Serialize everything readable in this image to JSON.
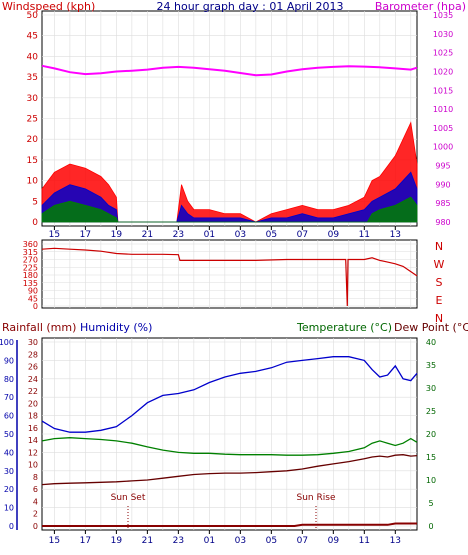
{
  "colors": {
    "windspeed": "#ff0000",
    "avg_wind": "#0000cc",
    "gust_low": "#008000",
    "barometer": "#ff00ff",
    "direction": "#cc0000",
    "humidity": "#0000cc",
    "temperature": "#008000",
    "dewpoint": "#660000",
    "rainfall": "#880000",
    "axis_blue": "#0000aa",
    "axis_green": "#006600"
  },
  "header": {
    "title": "24 hour graph day : 01 April 2013",
    "left_label": "Windspeed (kph)",
    "right_label": "Barometer (hpa)"
  },
  "time_ticks": [
    "15",
    "17",
    "19",
    "21",
    "23",
    "01",
    "03",
    "05",
    "07",
    "09",
    "11",
    "13"
  ],
  "chart_data": [
    {
      "type": "line",
      "title": "24 hour graph day : 01 April 2013",
      "ylabel": "Windspeed (kph)",
      "y2label": "Barometer (hpa)",
      "x_ticks": [
        "15",
        "17",
        "19",
        "21",
        "23",
        "01",
        "03",
        "05",
        "07",
        "09",
        "11",
        "13"
      ],
      "ylim": [
        0,
        50
      ],
      "yticks": [
        0,
        5,
        10,
        15,
        20,
        25,
        30,
        35,
        40,
        45,
        50
      ],
      "y2lim": [
        980,
        1035
      ],
      "y2ticks": [
        980,
        985,
        990,
        995,
        1000,
        1005,
        1010,
        1015,
        1020,
        1025,
        1030,
        1035
      ],
      "series": [
        {
          "axis": "right",
          "x": [
            14.2,
            15,
            16,
            17,
            18,
            19,
            20,
            21,
            22,
            23,
            24,
            25,
            26,
            27,
            28,
            29,
            30,
            31,
            32,
            33,
            34,
            35,
            36,
            37,
            38,
            38.4
          ],
          "values": [
            1021.5,
            1020.8,
            1019.8,
            1019.3,
            1019.5,
            1020.0,
            1020.2,
            1020.5,
            1021.0,
            1021.2,
            1021.0,
            1020.6,
            1020.2,
            1019.6,
            1019.0,
            1019.2,
            1020.0,
            1020.6,
            1021.0,
            1021.2,
            1021.4,
            1021.3,
            1021.1,
            1020.8,
            1020.5,
            1021.0
          ]
        },
        {
          "x": [
            14.2,
            15,
            16,
            17,
            18,
            18.5,
            19,
            19.1,
            22.9,
            23.2,
            23.6,
            24,
            25,
            26,
            27,
            28,
            29,
            30,
            31,
            32,
            33,
            34,
            35,
            35.5,
            36,
            37,
            38,
            38.4
          ],
          "values": [
            8,
            12,
            14,
            13,
            11,
            9,
            6,
            0,
            0,
            9,
            5,
            3,
            3,
            2,
            2,
            0,
            2,
            3,
            4,
            3,
            3,
            4,
            6,
            10,
            11,
            16,
            24,
            14
          ]
        },
        {
          "x": [
            14.2,
            15,
            16,
            17,
            18,
            18.5,
            19,
            19.1,
            22.9,
            23.2,
            23.6,
            24,
            25,
            26,
            27,
            28,
            29,
            30,
            31,
            32,
            33,
            34,
            35,
            35.5,
            36,
            37,
            38,
            38.4
          ],
          "values": [
            4,
            7,
            9,
            8,
            6,
            4,
            3,
            0,
            0,
            4,
            2,
            1,
            1,
            1,
            1,
            0,
            1,
            1,
            2,
            1,
            1,
            2,
            3,
            5,
            6,
            8,
            12,
            8
          ]
        },
        {
          "x": [
            14.2,
            15,
            16,
            17,
            18,
            18.5,
            19,
            19.1,
            35.2,
            35.5,
            36,
            37,
            38,
            38.4
          ],
          "values": [
            2,
            4,
            5,
            4,
            3,
            2,
            1,
            0,
            0,
            2,
            3,
            4,
            6,
            4
          ]
        }
      ]
    },
    {
      "type": "line",
      "x_ticks": [
        "15",
        "17",
        "19",
        "21",
        "23",
        "01",
        "03",
        "05",
        "07",
        "09",
        "11",
        "13"
      ],
      "ylim": [
        0,
        360
      ],
      "yticks": [
        0,
        45,
        90,
        135,
        180,
        225,
        270,
        315,
        360
      ],
      "y2ticks": [
        "N",
        "W",
        "S",
        "E",
        "N"
      ],
      "series": [
        {
          "x": [
            14.2,
            15,
            16,
            17,
            18,
            19,
            20,
            21,
            22,
            23,
            23.1,
            24,
            26,
            28,
            30,
            32,
            33.8,
            33.9,
            33.95,
            34.0,
            35,
            35.5,
            36,
            36.5,
            37,
            37.5,
            38,
            38.4
          ],
          "values": [
            330,
            335,
            330,
            325,
            318,
            305,
            300,
            300,
            300,
            298,
            265,
            265,
            265,
            265,
            270,
            270,
            270,
            0,
            270,
            270,
            270,
            280,
            265,
            255,
            245,
            230,
            200,
            175
          ]
        }
      ]
    },
    {
      "type": "line",
      "ylabel": "Humidity (%)",
      "y2label": "Temperature (°C)",
      "x_ticks": [
        "15",
        "17",
        "19",
        "21",
        "23",
        "01",
        "03",
        "05",
        "07",
        "09",
        "11",
        "13"
      ],
      "ylim": [
        0,
        100
      ],
      "yticks": [
        0,
        10,
        20,
        30,
        40,
        50,
        60,
        70,
        80,
        90,
        100
      ],
      "y2lim": [
        0,
        40
      ],
      "y2ticks": [
        0,
        5,
        10,
        15,
        20,
        25,
        30,
        35,
        40
      ],
      "series": [
        {
          "name": "Humidity (%)",
          "x": [
            14.2,
            15,
            16,
            17,
            18,
            19,
            20,
            21,
            22,
            23,
            24,
            25,
            26,
            27,
            28,
            29,
            30,
            31,
            32,
            33,
            34,
            35,
            35.5,
            36,
            36.5,
            37,
            37.5,
            38,
            38.4
          ],
          "values": [
            57,
            53,
            51,
            51,
            52,
            54,
            60,
            67,
            71,
            72,
            74,
            78,
            81,
            83,
            84,
            86,
            89,
            90,
            91,
            92,
            92,
            90,
            85,
            81,
            82,
            87,
            80,
            79,
            83
          ]
        },
        {
          "name": "Temperature (°C)",
          "axis": "right",
          "x": [
            14.2,
            15,
            16,
            17,
            18,
            19,
            20,
            21,
            22,
            23,
            24,
            25,
            26,
            27,
            28,
            29,
            30,
            31,
            32,
            33,
            34,
            35,
            35.5,
            36,
            36.5,
            37,
            37.5,
            38,
            38.4
          ],
          "values": [
            18.5,
            19.0,
            19.2,
            19.0,
            18.8,
            18.5,
            18.0,
            17.2,
            16.5,
            16.0,
            15.8,
            15.8,
            15.6,
            15.5,
            15.5,
            15.5,
            15.4,
            15.4,
            15.5,
            15.8,
            16.2,
            17.0,
            18.0,
            18.5,
            18.0,
            17.5,
            18.0,
            19.0,
            18.2
          ]
        },
        {
          "name": "Dew Point (°C)",
          "axis": "right",
          "x": [
            14.2,
            15,
            16,
            17,
            18,
            19,
            20,
            21,
            22,
            23,
            24,
            25,
            26,
            27,
            28,
            29,
            30,
            31,
            32,
            33,
            34,
            35,
            35.5,
            36,
            36.5,
            37,
            37.5,
            38,
            38.4
          ],
          "values": [
            9.0,
            9.2,
            9.3,
            9.4,
            9.5,
            9.6,
            9.8,
            10.0,
            10.4,
            10.8,
            11.2,
            11.4,
            11.5,
            11.5,
            11.6,
            11.8,
            12.0,
            12.4,
            13.0,
            13.5,
            14.0,
            14.6,
            15.0,
            15.2,
            15.0,
            15.4,
            15.5,
            15.2,
            15.3
          ]
        }
      ]
    },
    {
      "type": "line",
      "ylabel": "Rainfall (mm)",
      "ylim": [
        0,
        30
      ],
      "yticks": [
        0,
        2,
        4,
        6,
        8,
        10,
        12,
        14,
        16,
        18,
        20,
        22,
        24,
        26,
        28,
        30
      ],
      "series": [
        {
          "name": "Rainfall (mm)",
          "x": [
            14.2,
            30.5,
            31,
            36.5,
            37,
            38.4
          ],
          "values": [
            0,
            0,
            0.2,
            0.2,
            0.4,
            0.4
          ]
        }
      ]
    }
  ],
  "bottom_header": {
    "rainfall_label": "Rainfall (mm)",
    "humidity_label": "Humidity (%)",
    "temperature_label": "Temperature (°C)",
    "dewpoint_label": "Dew Point (°C)"
  },
  "annotations": {
    "sunset": "Sun Set",
    "sunrise": "Sun Rise"
  }
}
